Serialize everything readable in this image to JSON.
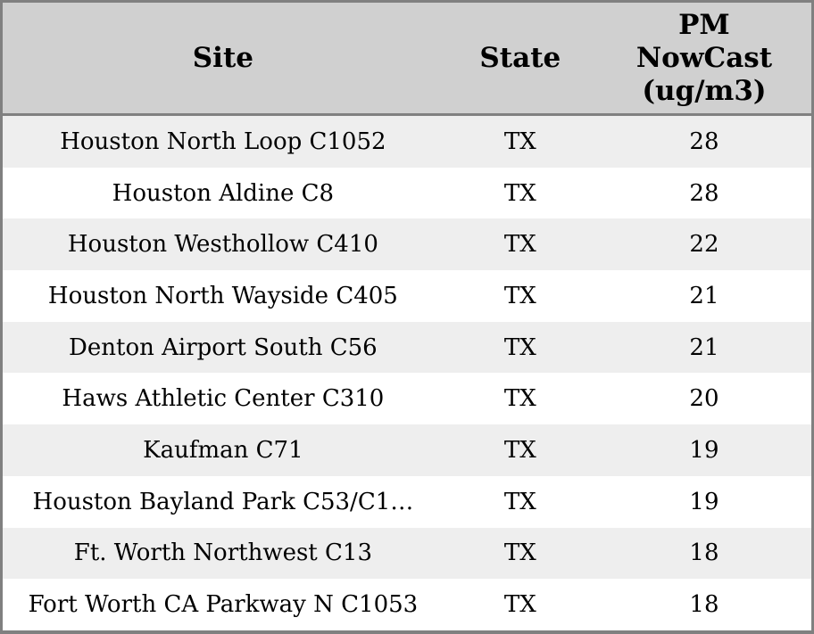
{
  "colors": {
    "frame_border": "#808080",
    "header_bg": "#d0d0d0",
    "row_alt_bg": "#eeeeee",
    "row_bg": "#ffffff",
    "text": "#000000"
  },
  "table": {
    "columns": [
      {
        "label": "Site"
      },
      {
        "label": "State"
      },
      {
        "label": "PM NowCast (ug/m3)",
        "lines": [
          "PM",
          "NowCast",
          "(ug/m3)"
        ]
      }
    ],
    "rows": [
      {
        "site": "Houston North Loop C1052",
        "state": "TX",
        "pm_nowcast": "28"
      },
      {
        "site": "Houston Aldine C8",
        "state": "TX",
        "pm_nowcast": "28"
      },
      {
        "site": "Houston Westhollow C410",
        "state": "TX",
        "pm_nowcast": "22"
      },
      {
        "site": "Houston North Wayside C405",
        "state": "TX",
        "pm_nowcast": "21"
      },
      {
        "site": "Denton Airport South C56",
        "state": "TX",
        "pm_nowcast": "21"
      },
      {
        "site": "Haws Athletic Center C310",
        "state": "TX",
        "pm_nowcast": "20"
      },
      {
        "site": "Kaufman C71",
        "state": "TX",
        "pm_nowcast": "19"
      },
      {
        "site": "Houston Bayland Park C53/C1…",
        "state": "TX",
        "pm_nowcast": "19"
      },
      {
        "site": "Ft. Worth Northwest C13",
        "state": "TX",
        "pm_nowcast": "18"
      },
      {
        "site": "Fort Worth CA Parkway N C1053",
        "state": "TX",
        "pm_nowcast": "18"
      }
    ]
  }
}
